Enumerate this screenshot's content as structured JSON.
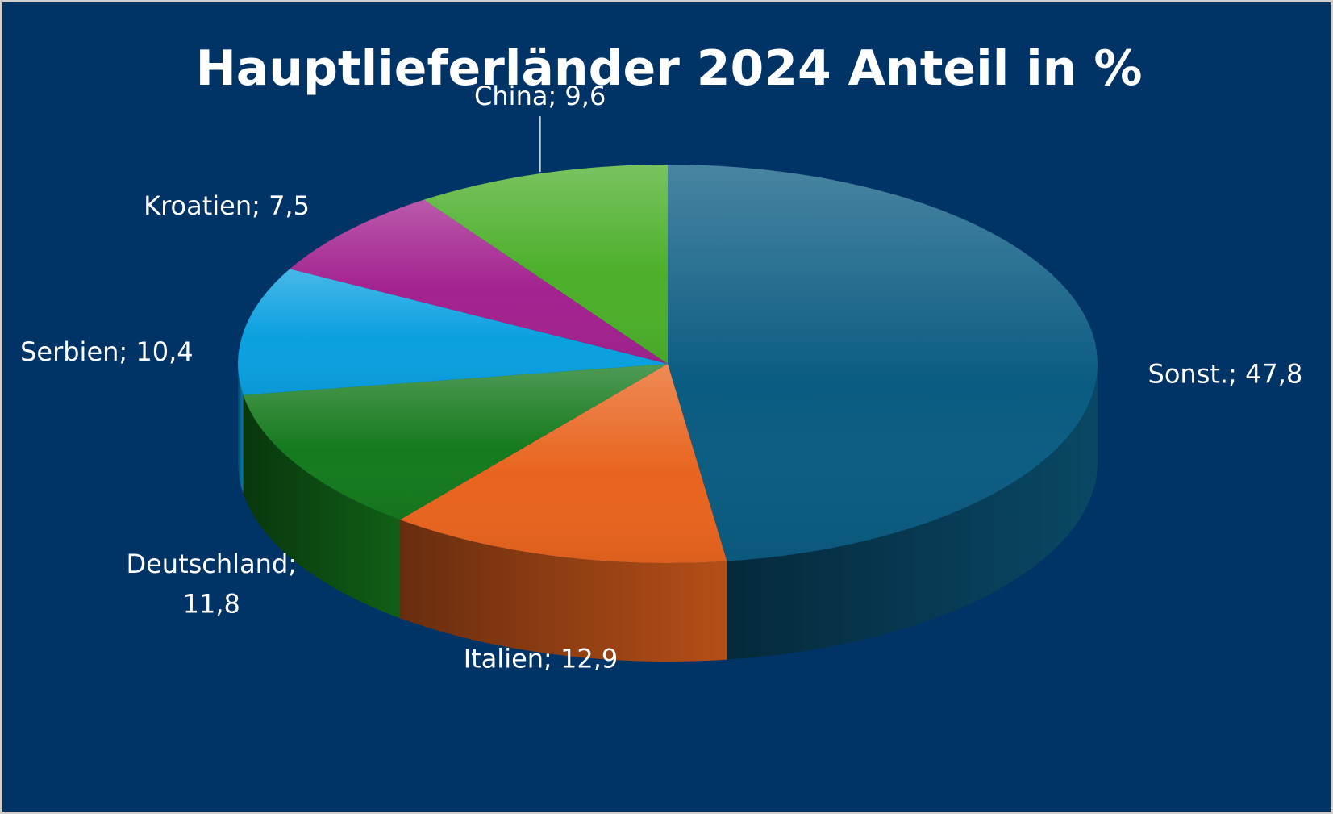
{
  "chart_data": {
    "type": "pie",
    "title": "Hauptlieferländer 2024 Anteil in %",
    "slices": [
      {
        "label": "Sonst.",
        "display": "47,8",
        "value": 47.8,
        "color": "#0b5c82"
      },
      {
        "label": "Italien",
        "display": "12,9",
        "value": 12.9,
        "color": "#e8641e"
      },
      {
        "label": "Deutschland",
        "display": "11,8",
        "value": 11.8,
        "color": "#157a1d"
      },
      {
        "label": "Serbien",
        "display": "10,4",
        "value": 10.4,
        "color": "#0aa0e0"
      },
      {
        "label": "Kroatien",
        "display": "7,5",
        "value": 7.5,
        "color": "#a3228f"
      },
      {
        "label": "China",
        "display": "9,6",
        "value": 9.6,
        "color": "#4caf2a"
      }
    ],
    "background_color": "#003366",
    "legend": "none",
    "style": "3d"
  }
}
